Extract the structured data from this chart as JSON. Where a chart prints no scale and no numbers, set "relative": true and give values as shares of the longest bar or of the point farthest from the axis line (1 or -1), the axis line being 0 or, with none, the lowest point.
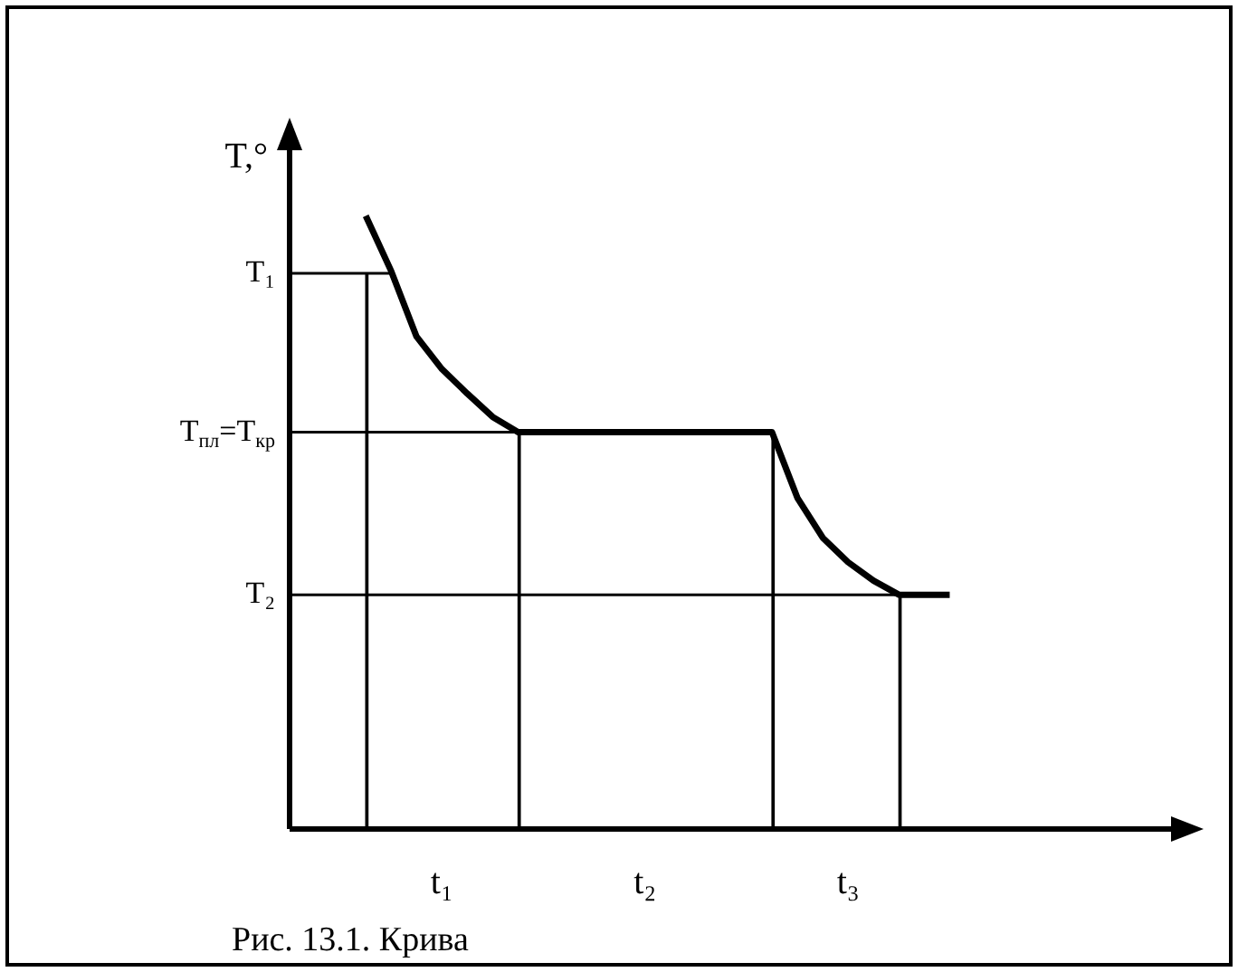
{
  "chart_data": {
    "type": "line",
    "relative": true,
    "ylabel": "T,°",
    "categories": [
      null,
      null,
      null,
      null,
      null,
      null,
      "t₁",
      null,
      null,
      null,
      null,
      null,
      null,
      null,
      "t₂",
      null,
      null,
      null,
      null,
      null,
      null,
      null,
      "t₃",
      null,
      null,
      null,
      null,
      null,
      null,
      null,
      null,
      null,
      null,
      null,
      null,
      null,
      null
    ],
    "series": [
      {
        "color": "#000000",
        "values": [
          null,
          null,
          null,
          1.0,
          0.91,
          0.803,
          0.75,
          0.71,
          0.672,
          0.647,
          0.647,
          0.647,
          0.647,
          0.647,
          0.647,
          0.647,
          0.647,
          0.647,
          0.647,
          0.647,
          0.54,
          0.475,
          0.435,
          0.405,
          0.382,
          0.382,
          0.382,
          null,
          null,
          null,
          null,
          null,
          null,
          null,
          null,
          null,
          null
        ]
      },
      {
        "type": "bar",
        "color": "#000000",
        "values": [
          null,
          null,
          null,
          0.906,
          null,
          null,
          null,
          null,
          null,
          0.647,
          null,
          null,
          null,
          null,
          null,
          null,
          null,
          null,
          null,
          0.647,
          null,
          null,
          null,
          null,
          0.382,
          null,
          null,
          null,
          null,
          null,
          null,
          null,
          null,
          null,
          null,
          null,
          null
        ]
      }
    ],
    "ref_lines": [
      {
        "axis": "y",
        "value": 0.906,
        "label": "T₁"
      },
      {
        "axis": "y",
        "value": 0.647,
        "label": "T$_{пл}$=T$_{кр}$"
      },
      {
        "axis": "y",
        "value": 0.382,
        "label": "T₂"
      }
    ],
    "legend": false,
    "annotations": [
      "Рис. 13.1. Крива"
    ]
  }
}
